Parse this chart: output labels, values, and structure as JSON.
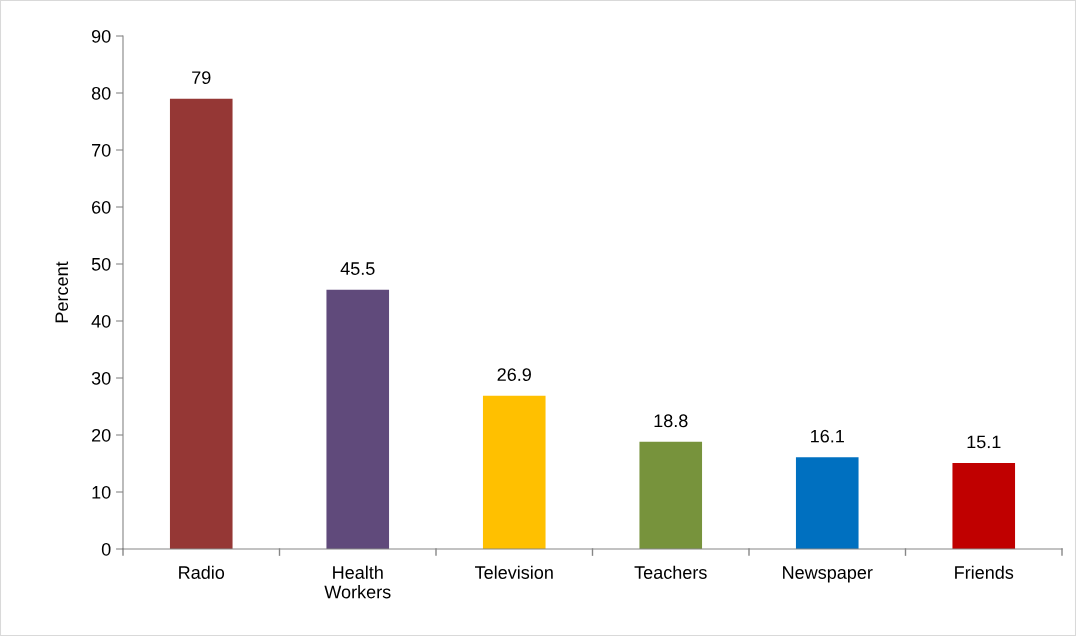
{
  "chart_data": {
    "type": "bar",
    "ylabel": "Percent",
    "categories": [
      "Radio",
      "Health Workers",
      "Television",
      "Teachers",
      "Newspaper",
      "Friends"
    ],
    "values": [
      79,
      45.5,
      26.9,
      18.8,
      16.1,
      15.1
    ],
    "colors": [
      "#953735",
      "#604a7b",
      "#ffc000",
      "#77933c",
      "#0070c0",
      "#c00000"
    ],
    "ylim": [
      0,
      90
    ],
    "yticks": [
      0,
      10,
      20,
      30,
      40,
      50,
      60,
      70,
      80,
      90
    ],
    "data_labels": true,
    "grid": false,
    "legend": false
  }
}
